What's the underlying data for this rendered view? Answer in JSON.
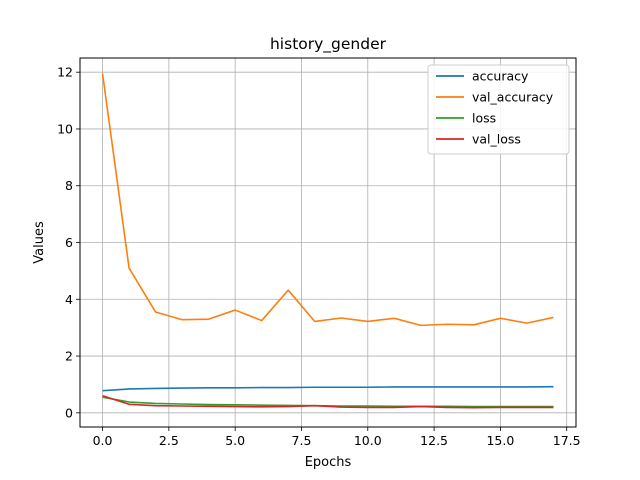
{
  "chart_data": {
    "type": "line",
    "title": "history_gender",
    "xlabel": "Epochs",
    "ylabel": "Values",
    "xlim": [
      -0.85,
      17.85
    ],
    "ylim": [
      -0.5,
      12.5
    ],
    "xticks": [
      0.0,
      2.5,
      5.0,
      7.5,
      10.0,
      12.5,
      15.0,
      17.5
    ],
    "xtick_labels": [
      "0.0",
      "2.5",
      "5.0",
      "7.5",
      "10.0",
      "12.5",
      "15.0",
      "17.5"
    ],
    "yticks": [
      0,
      2,
      4,
      6,
      8,
      10,
      12
    ],
    "ytick_labels": [
      "0",
      "2",
      "4",
      "6",
      "8",
      "10",
      "12"
    ],
    "grid": true,
    "legend_position": "top-right",
    "x": [
      0,
      1,
      2,
      3,
      4,
      5,
      6,
      7,
      8,
      9,
      10,
      11,
      12,
      13,
      14,
      15,
      16,
      17
    ],
    "series": [
      {
        "name": "accuracy",
        "color": "#1f77b4",
        "values": [
          0.78,
          0.84,
          0.86,
          0.87,
          0.88,
          0.88,
          0.89,
          0.89,
          0.9,
          0.9,
          0.9,
          0.91,
          0.91,
          0.91,
          0.91,
          0.91,
          0.91,
          0.92
        ]
      },
      {
        "name": "val_accuracy",
        "color": "#ff7f0e",
        "values": [
          11.95,
          5.1,
          3.55,
          3.28,
          3.3,
          3.62,
          3.25,
          4.32,
          3.22,
          3.34,
          3.22,
          3.33,
          3.08,
          3.12,
          3.1,
          3.33,
          3.16,
          3.36
        ]
      },
      {
        "name": "loss",
        "color": "#2ca02c",
        "values": [
          0.55,
          0.38,
          0.33,
          0.31,
          0.29,
          0.28,
          0.27,
          0.26,
          0.25,
          0.24,
          0.24,
          0.23,
          0.23,
          0.23,
          0.22,
          0.22,
          0.22,
          0.22
        ]
      },
      {
        "name": "val_loss",
        "color": "#d62728",
        "values": [
          0.6,
          0.3,
          0.25,
          0.24,
          0.23,
          0.22,
          0.21,
          0.22,
          0.25,
          0.2,
          0.19,
          0.19,
          0.22,
          0.19,
          0.18,
          0.19,
          0.19,
          0.19
        ]
      }
    ]
  }
}
